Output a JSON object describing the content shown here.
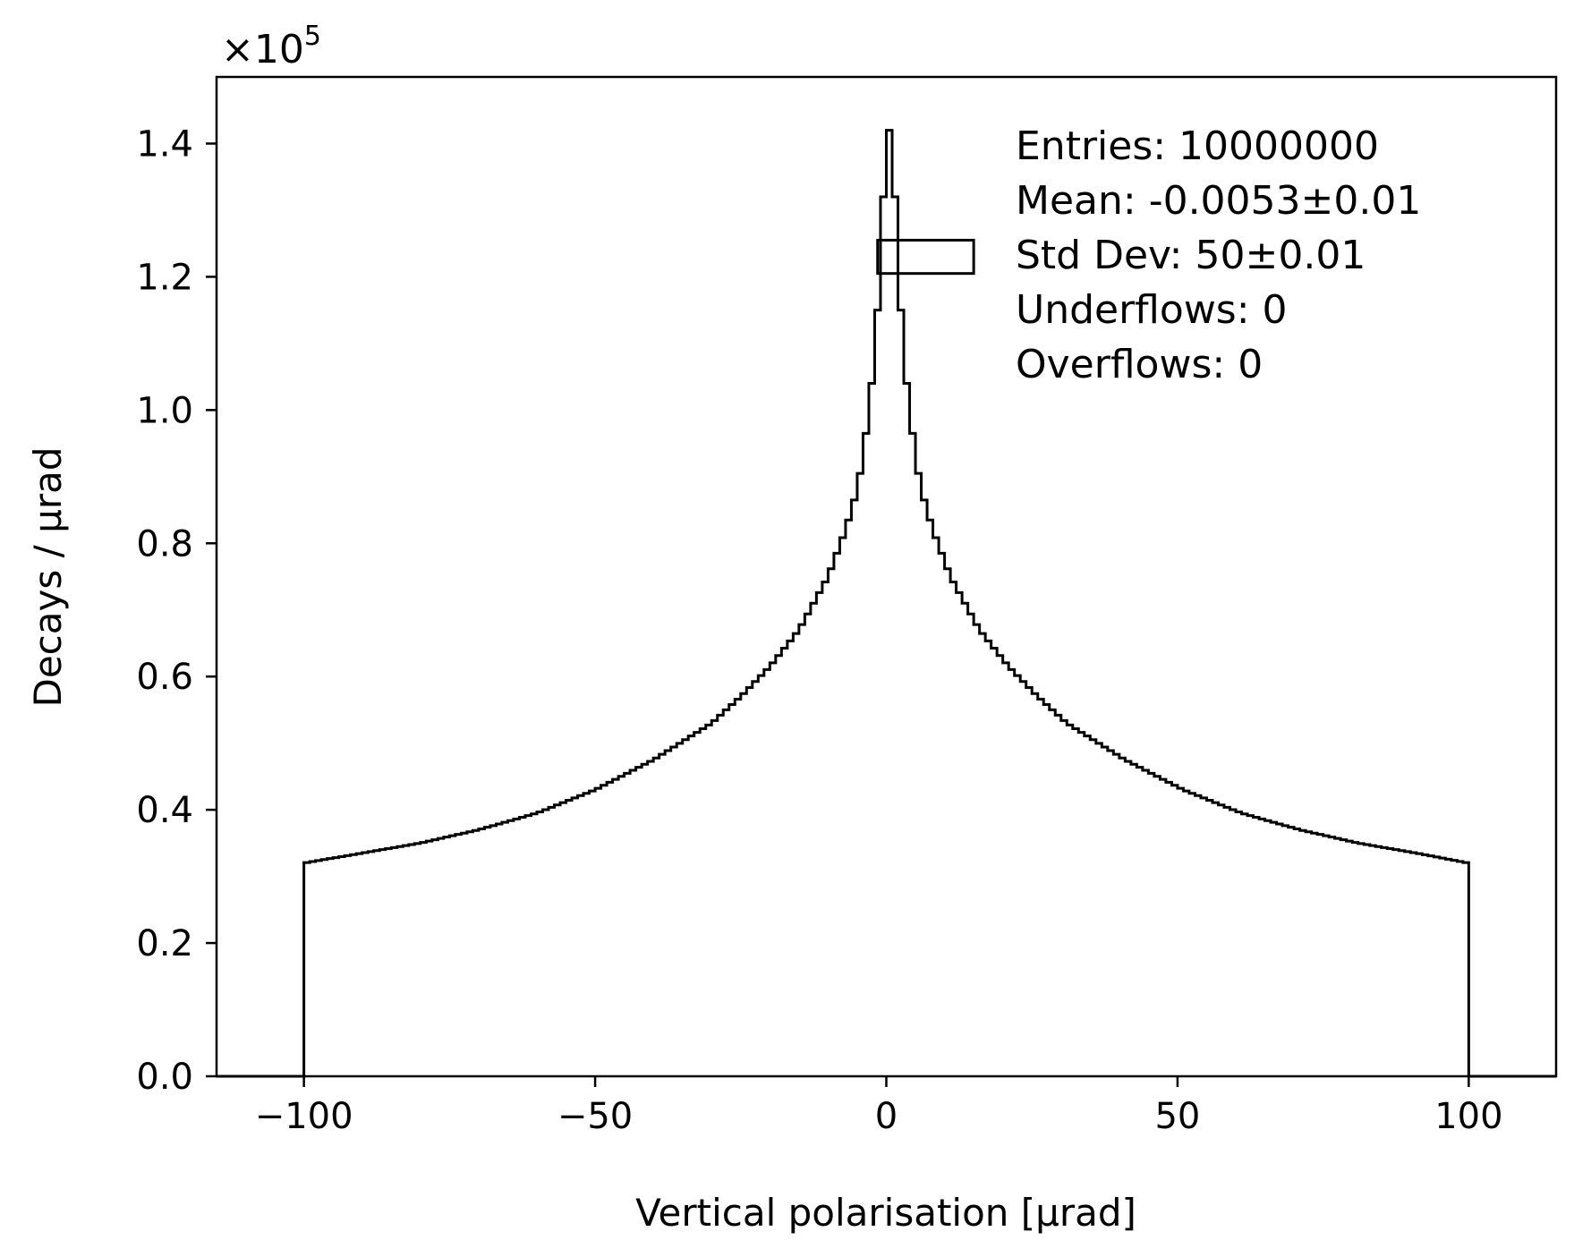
{
  "chart_data": {
    "type": "histogram",
    "xlabel": "Vertical polarisation [μrad]",
    "ylabel": "Decays / μrad",
    "y_multiplier": "×10",
    "y_multiplier_exp": "5",
    "xlim": [
      -115,
      115
    ],
    "ylim": [
      0,
      1.5
    ],
    "x_ticks": [
      -100,
      -50,
      0,
      50,
      100
    ],
    "x_tick_labels": [
      "−100",
      "−50",
      "0",
      "50",
      "100"
    ],
    "y_ticks": [
      0.0,
      0.2,
      0.4,
      0.6,
      0.8,
      1.0,
      1.2,
      1.4
    ],
    "y_tick_labels": [
      "0.0",
      "0.2",
      "0.4",
      "0.6",
      "0.8",
      "1.0",
      "1.2",
      "1.4"
    ],
    "grid": false,
    "histtype": "step",
    "line_color": "#000000",
    "bin_range": [
      -100,
      100
    ],
    "bin_count": 200,
    "profile_points": [
      [
        -100,
        0.32
      ],
      [
        -90,
        0.335
      ],
      [
        -80,
        0.35
      ],
      [
        -70,
        0.37
      ],
      [
        -60,
        0.395
      ],
      [
        -50,
        0.43
      ],
      [
        -40,
        0.475
      ],
      [
        -30,
        0.53
      ],
      [
        -25,
        0.57
      ],
      [
        -20,
        0.615
      ],
      [
        -15,
        0.67
      ],
      [
        -10,
        0.75
      ],
      [
        -7,
        0.82
      ],
      [
        -5,
        0.88
      ],
      [
        -4,
        0.93
      ],
      [
        -3,
        1.0
      ],
      [
        -2,
        1.08
      ],
      [
        -1,
        1.22
      ],
      [
        0,
        1.42
      ],
      [
        1,
        1.42
      ],
      [
        2,
        1.22
      ],
      [
        3,
        1.08
      ],
      [
        4,
        1.0
      ],
      [
        5,
        0.93
      ],
      [
        6,
        0.88
      ],
      [
        8,
        0.82
      ],
      [
        11,
        0.75
      ],
      [
        16,
        0.67
      ],
      [
        21,
        0.615
      ],
      [
        26,
        0.57
      ],
      [
        31,
        0.53
      ],
      [
        41,
        0.475
      ],
      [
        51,
        0.43
      ],
      [
        61,
        0.395
      ],
      [
        71,
        0.37
      ],
      [
        81,
        0.35
      ],
      [
        91,
        0.335
      ],
      [
        100,
        0.32
      ]
    ],
    "legend_box": {
      "x_range": [
        -1.5,
        15
      ],
      "y_range": [
        1.205,
        1.255
      ]
    },
    "stats": [
      "Entries: 10000000",
      "Mean: -0.0053±0.01",
      "Std Dev: 50±0.01",
      "Underflows: 0",
      "Overflows: 0"
    ]
  }
}
